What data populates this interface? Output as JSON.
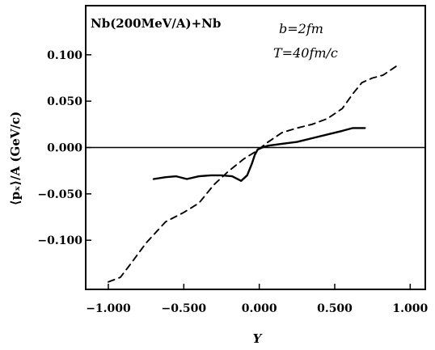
{
  "chart_data": {
    "type": "line",
    "xlabel": "Y",
    "ylabel": "⟨pₓ⟩/A (GeV/c)",
    "xlim": [
      -1.15,
      1.1
    ],
    "ylim": [
      -0.153,
      0.153
    ],
    "grid": false,
    "xticks": [
      -1.0,
      -0.5,
      0.0,
      0.5,
      1.0
    ],
    "xtick_labels": [
      "−1.000",
      "−0.500",
      "0.000",
      "0.500",
      "1.000"
    ],
    "yticks": [
      0.1,
      0.05,
      0.0,
      -0.05,
      -0.1
    ],
    "ytick_labels": [
      "0.100",
      "0.050",
      "0.000",
      "−0.050",
      "−0.100"
    ],
    "annotations": {
      "reaction": "Nb(200MeV/A)+Nb",
      "impact": "b=2fm",
      "time": "T=40fm/c"
    },
    "series": [
      {
        "style": "solid",
        "x": [
          -0.7,
          -0.62,
          -0.55,
          -0.48,
          -0.4,
          -0.32,
          -0.25,
          -0.18,
          -0.12,
          -0.08,
          -0.05,
          -0.03,
          -0.01,
          0.02,
          0.06,
          0.15,
          0.25,
          0.35,
          0.45,
          0.55,
          0.62,
          0.7
        ],
        "y": [
          -0.034,
          -0.032,
          -0.031,
          -0.034,
          -0.031,
          -0.03,
          -0.03,
          -0.031,
          -0.036,
          -0.03,
          -0.018,
          -0.008,
          -0.002,
          0.0,
          0.002,
          0.004,
          0.006,
          0.01,
          0.014,
          0.018,
          0.021,
          0.021
        ]
      },
      {
        "style": "dashed",
        "x": [
          -1.0,
          -0.92,
          -0.85,
          -0.75,
          -0.62,
          -0.5,
          -0.4,
          -0.3,
          -0.2,
          -0.1,
          -0.02,
          0.05,
          0.15,
          0.25,
          0.35,
          0.45,
          0.55,
          0.62,
          0.68,
          0.75,
          0.82,
          0.92
        ],
        "y": [
          -0.145,
          -0.14,
          -0.125,
          -0.103,
          -0.08,
          -0.07,
          -0.06,
          -0.04,
          -0.025,
          -0.012,
          -0.004,
          0.005,
          0.016,
          0.021,
          0.025,
          0.031,
          0.042,
          0.058,
          0.07,
          0.075,
          0.078,
          0.089
        ]
      }
    ]
  }
}
